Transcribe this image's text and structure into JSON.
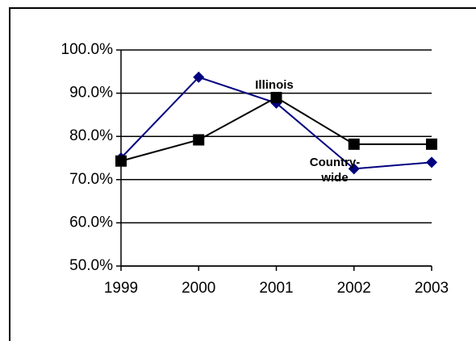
{
  "chart_data": {
    "type": "line",
    "categories": [
      "1999",
      "2000",
      "2001",
      "2002",
      "2003"
    ],
    "series": [
      {
        "name": "Illinois",
        "color": "#000080",
        "marker": "diamond",
        "values": [
          75.0,
          93.7,
          87.7,
          72.5,
          74.0
        ]
      },
      {
        "name": "Country-wide",
        "color": "#000000",
        "marker": "square",
        "values": [
          74.3,
          79.2,
          89.0,
          78.2,
          78.2
        ]
      }
    ],
    "ylim": [
      50,
      100
    ],
    "yticks": [
      {
        "value": 50,
        "label": "50.0%"
      },
      {
        "value": 60,
        "label": "60.0%"
      },
      {
        "value": 70,
        "label": "70.0%"
      },
      {
        "value": 80,
        "label": "80.0%"
      },
      {
        "value": 90,
        "label": "90.0%"
      },
      {
        "value": 100,
        "label": "100.0%"
      }
    ],
    "grid": true
  }
}
